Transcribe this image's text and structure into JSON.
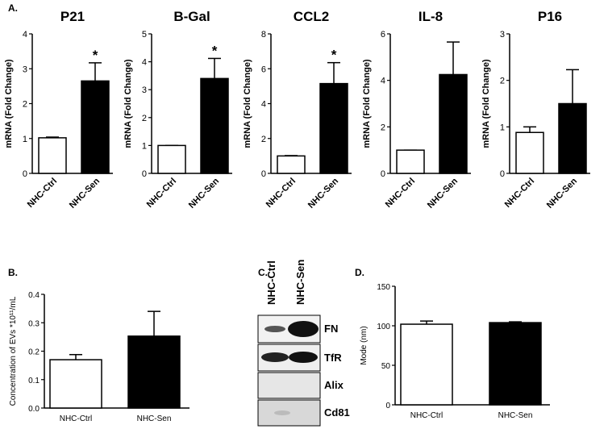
{
  "chart_data": [
    {
      "type": "bar",
      "panel": "A.",
      "title": "P21",
      "ylabel": "mRNA (Fold Change)",
      "categories": [
        "NHC-Ctrl",
        "NHC-Sen"
      ],
      "values": [
        1.02,
        2.65
      ],
      "errors": [
        0.02,
        0.52
      ],
      "colors": [
        "#ffffff",
        "#000000"
      ],
      "significance": [
        null,
        "*"
      ],
      "ylim": [
        0,
        4
      ],
      "yticks": [
        0,
        1,
        2,
        3,
        4
      ]
    },
    {
      "type": "bar",
      "title": "B-Gal",
      "ylabel": "mRNA (Fold Change)",
      "categories": [
        "NHC-Ctrl",
        "NHC-Sen"
      ],
      "values": [
        1.0,
        3.4
      ],
      "errors": [
        0.0,
        0.72
      ],
      "colors": [
        "#ffffff",
        "#000000"
      ],
      "significance": [
        null,
        "*"
      ],
      "ylim": [
        0,
        5
      ],
      "yticks": [
        0,
        1,
        2,
        3,
        4,
        5
      ]
    },
    {
      "type": "bar",
      "title": "CCL2",
      "ylabel": "mRNA (Fold Change)",
      "categories": [
        "NHC-Ctrl",
        "NHC-Sen"
      ],
      "values": [
        1.0,
        5.15
      ],
      "errors": [
        0.02,
        1.2
      ],
      "colors": [
        "#ffffff",
        "#000000"
      ],
      "significance": [
        null,
        "*"
      ],
      "ylim": [
        0,
        8
      ],
      "yticks": [
        0,
        2,
        4,
        6,
        8
      ]
    },
    {
      "type": "bar",
      "title": "IL-8",
      "ylabel": "mRNA (Fold Change)",
      "categories": [
        "NHC-Ctrl",
        "NHC-Sen"
      ],
      "values": [
        1.0,
        4.25
      ],
      "errors": [
        0.0,
        1.4
      ],
      "colors": [
        "#ffffff",
        "#000000"
      ],
      "ylim": [
        0,
        6
      ],
      "yticks": [
        0,
        2,
        4,
        6
      ]
    },
    {
      "type": "bar",
      "title": "P16",
      "ylabel": "mRNA (Fold Change)",
      "categories": [
        "NHC-Ctrl",
        "NHC-Sen"
      ],
      "values": [
        0.88,
        1.5
      ],
      "errors": [
        0.12,
        0.73
      ],
      "colors": [
        "#ffffff",
        "#000000"
      ],
      "ylim": [
        0,
        3
      ],
      "yticks": [
        0,
        1,
        2,
        3
      ]
    },
    {
      "type": "bar",
      "panel": "B.",
      "ylabel": "Concentration of EVs *10¹¹/mL",
      "categories": [
        "NHC-Ctrl",
        "NHC-Sen"
      ],
      "values": [
        0.17,
        0.253
      ],
      "errors": [
        0.018,
        0.087
      ],
      "colors": [
        "#ffffff",
        "#000000"
      ],
      "ylim": [
        0,
        0.4
      ],
      "yticks": [
        {
          "value": 0,
          "label": "0.0"
        },
        0.1,
        0.2,
        0.3,
        0.4
      ]
    },
    {
      "type": "bar",
      "panel": "D.",
      "ylabel": "Mode (nm)",
      "categories": [
        "NHC-Ctrl",
        "NHC-Sen"
      ],
      "values": [
        102,
        104
      ],
      "errors": [
        4,
        1
      ],
      "colors": [
        "#ffffff",
        "#000000"
      ],
      "ylim": [
        0,
        150
      ],
      "yticks": [
        0,
        50,
        100,
        150
      ]
    }
  ],
  "blot": {
    "panel": "C.",
    "lanes": [
      "NHC-Ctrl",
      "NHC-Sen"
    ],
    "bands": [
      "FN",
      "TfR",
      "Alix",
      "Cd81"
    ]
  }
}
